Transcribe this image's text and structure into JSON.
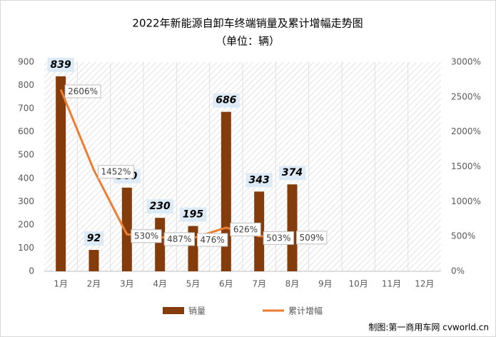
{
  "chart_data": {
    "type": "bar-line",
    "title": "2022年新能源自卸车终端销量及累计增幅走势图",
    "subtitle": "（单位：辆）",
    "categories": [
      "1月",
      "2月",
      "3月",
      "4月",
      "5月",
      "6月",
      "7月",
      "8月",
      "9月",
      "10月",
      "11月",
      "12月"
    ],
    "series": [
      {
        "name": "销量",
        "color": "#843c0c",
        "kind": "bar",
        "values": [
          839,
          92,
          360,
          230,
          195,
          686,
          343,
          374,
          null,
          null,
          null,
          null
        ]
      },
      {
        "name": "累计增幅",
        "color": "#ed7d31",
        "kind": "line",
        "axis": "y2",
        "values": [
          2606,
          1452,
          530,
          487,
          476,
          626,
          503,
          509,
          null,
          null,
          null,
          null
        ],
        "value_labels": [
          "2606%",
          "1452%",
          "530%",
          "487%",
          "476%",
          "626%",
          "503%",
          "509%",
          null,
          null,
          null,
          null
        ]
      }
    ],
    "ylim": [
      0,
      900
    ],
    "yticks": [
      0,
      100,
      200,
      300,
      400,
      500,
      600,
      700,
      800,
      900
    ],
    "y2lim": [
      0,
      3000
    ],
    "y2ticks": [
      {
        "value": 0,
        "label": "0%"
      },
      {
        "value": 500,
        "label": "500%"
      },
      {
        "value": 1000,
        "label": "1000%"
      },
      {
        "value": 1500,
        "label": "1500%"
      },
      {
        "value": 2000,
        "label": "2000%"
      },
      {
        "value": 2500,
        "label": "2500%"
      },
      {
        "value": 3000,
        "label": "3000%"
      }
    ],
    "source": "制图:第一商用车网 cvworld.cn"
  }
}
